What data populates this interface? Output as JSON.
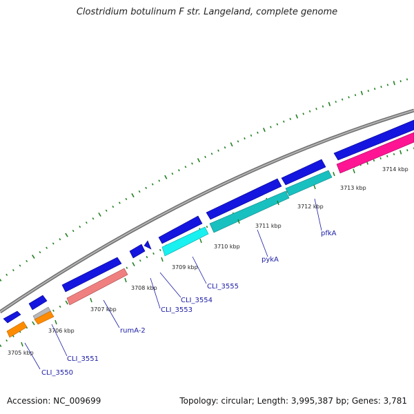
{
  "title": "Clostridium botulinum F str. Langeland, complete genome",
  "footer": {
    "accession": "Accession: NC_009699",
    "topology": "Topology: circular; Length: 3,995,387 bp; Genes: 3,781"
  },
  "colors": {
    "backbone": "#8c8c8c",
    "dots": "#1f7f1f",
    "cds_blue": "#1515e0",
    "orange": "#ff8c00",
    "grey": "#b8b8b8",
    "salmon": "#f08080",
    "cyan": "#19f0f0",
    "teal": "#19c0c0",
    "magenta": "#ff1493",
    "label": "#1a1aa6"
  },
  "tick_labels": [
    "3705 kbp",
    "3706 kbp",
    "3707 kbp",
    "3708 kbp",
    "3709 kbp",
    "3710 kbp",
    "3711 kbp",
    "3712 kbp",
    "3713 kbp",
    "3714 kbp"
  ],
  "gene_labels": [
    "CLI_3550",
    "CLI_3551",
    "rumA-2",
    "CLI_3553",
    "CLI_3554",
    "CLI_3555",
    "pykA",
    "pfkA"
  ]
}
